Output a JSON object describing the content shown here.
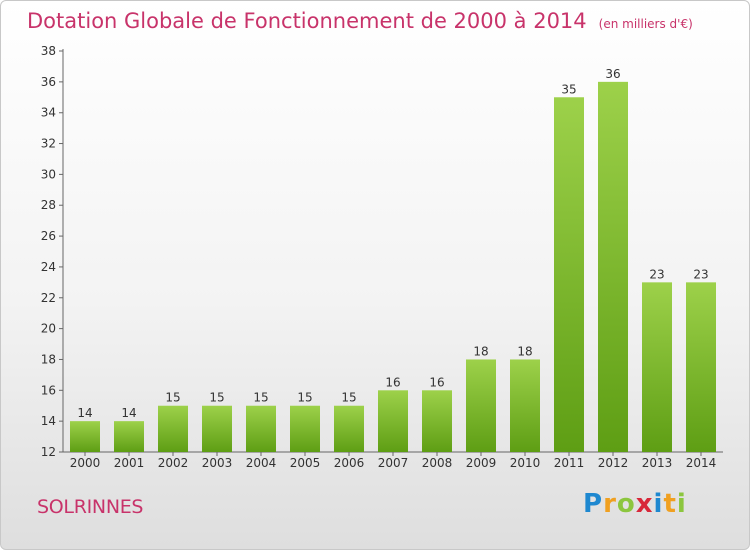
{
  "title": "Dotation Globale de Fonctionnement de 2000 à 2014",
  "unit_note": "(en milliers d'€)",
  "commune": "SOLRINNES",
  "logo": {
    "text": "Proxiti"
  },
  "colors": {
    "bar_light": "#9dd14a",
    "bar_dark": "#5e9e14",
    "title": "#c8336a"
  },
  "chart_data": {
    "type": "bar",
    "title": "Dotation Globale de Fonctionnement de 2000 à 2014",
    "categories": [
      "2000",
      "2001",
      "2002",
      "2003",
      "2004",
      "2005",
      "2006",
      "2007",
      "2008",
      "2009",
      "2010",
      "2011",
      "2012",
      "2013",
      "2014"
    ],
    "values": [
      14,
      14,
      15,
      15,
      15,
      15,
      15,
      16,
      16,
      18,
      18,
      35,
      36,
      23,
      23
    ],
    "ylim": [
      12,
      38
    ],
    "yticks": [
      12,
      14,
      16,
      18,
      20,
      22,
      24,
      26,
      28,
      30,
      32,
      34,
      36,
      38
    ],
    "grid": false,
    "legend": "none"
  }
}
